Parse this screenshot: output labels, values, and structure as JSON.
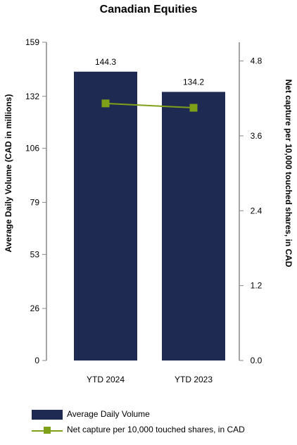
{
  "chart_data": {
    "type": "bar",
    "title": "Canadian Equities",
    "categories": [
      "YTD 2024",
      "YTD 2023"
    ],
    "series": [
      {
        "name": "Average Daily Volume",
        "type": "bar",
        "axis": "left",
        "values": [
          144.3,
          134.2
        ],
        "labels": [
          "144.3",
          "134.2"
        ]
      },
      {
        "name": "Net capture per 10,000 touched shares, in CAD",
        "type": "line",
        "axis": "right",
        "values": [
          4.12,
          4.05
        ]
      }
    ],
    "ylabel": "Average Daily Volume (CAD in millions)",
    "ylabel_right": "Net capture per 10,000 touched shares, in CAD",
    "ylim": [
      0,
      159
    ],
    "ylim_right": [
      0,
      5.1
    ],
    "yticks": [
      "0",
      "26",
      "53",
      "79",
      "106",
      "132",
      "159"
    ],
    "yticks_right": [
      "0.0",
      "1.2",
      "2.4",
      "3.6",
      "4.8"
    ],
    "grid": false,
    "legend_position": "bottom-left",
    "colors": {
      "bar": "#1f2a52",
      "line": "#7fa019",
      "axis": "#888888"
    }
  }
}
